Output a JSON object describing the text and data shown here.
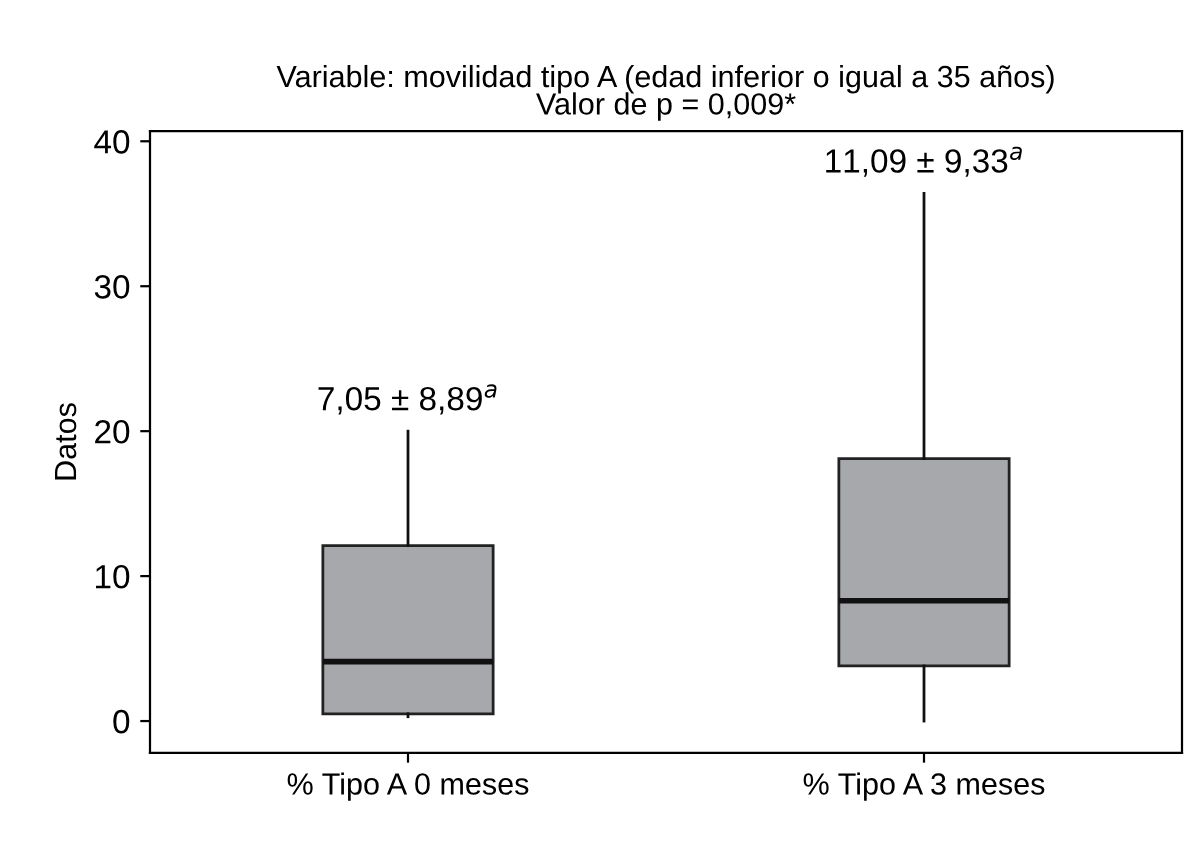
{
  "chart_data": {
    "type": "box",
    "title": "Variable: movilidad tipo A (edad inferior o igual a 35 años)\nValor de p = 0,009*",
    "ylabel": "Datos",
    "categories": [
      "% Tipo A 0 meses",
      "% Tipo A 3 meses"
    ],
    "boxes": [
      {
        "low": 0.3,
        "q1": 0.5,
        "median": 4.1,
        "q3": 12.1,
        "high": 20
      },
      {
        "low": 0,
        "q1": 3.8,
        "median": 8.3,
        "q3": 18.1,
        "high": 36.4
      }
    ],
    "color": "#a7a8ab",
    "ylim": [
      -2.2,
      40.7
    ],
    "yticks": [
      0,
      10,
      20,
      30,
      40
    ],
    "grid": false,
    "annotations": [
      {
        "text": "7,05 ± 8,89$^{a}$",
        "x": "% Tipo A 0 meses",
        "y": 20
      },
      {
        "text": "11,09 ± 9,33$^{a}$",
        "x": "% Tipo A 3 meses",
        "y": 36.4
      }
    ]
  }
}
